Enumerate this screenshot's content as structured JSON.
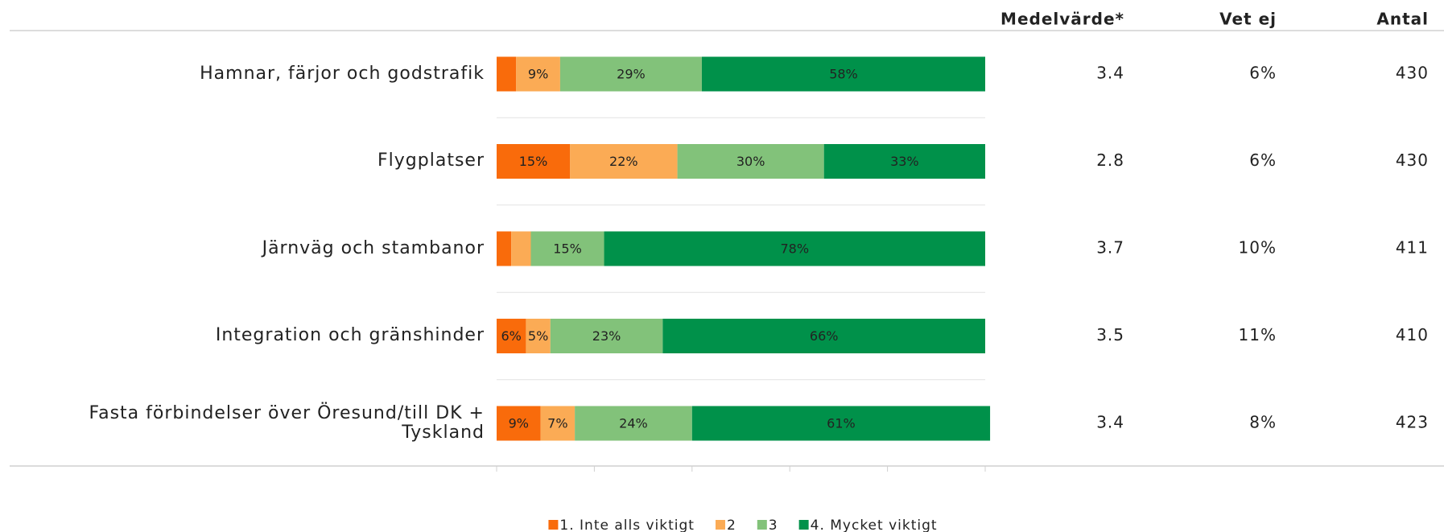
{
  "chart_data": {
    "type": "stacked_bar_horizontal",
    "categories": [
      "Hamnar, färjor och godstrafik",
      "Flygplatser",
      "Järnväg och stambanor",
      "Integration och gränshinder",
      "Fasta förbindelser över Öresund/till DK + Tyskland"
    ],
    "series": [
      {
        "name": "1. Inte alls viktigt",
        "color": "#f96b0b",
        "values": [
          4,
          15,
          3,
          6,
          9
        ],
        "value_labels": [
          null,
          "15%",
          null,
          "6%",
          "9%"
        ]
      },
      {
        "name": "2",
        "color": "#fbab55",
        "values": [
          9,
          22,
          4,
          5,
          7
        ],
        "value_labels": [
          "9%",
          "22%",
          null,
          "5%",
          "7%"
        ]
      },
      {
        "name": "3",
        "color": "#82c27a",
        "values": [
          29,
          30,
          15,
          23,
          24
        ],
        "value_labels": [
          "29%",
          "30%",
          "15%",
          "23%",
          "24%"
        ]
      },
      {
        "name": "4. Mycket viktigt",
        "color": "#00914a",
        "values": [
          58,
          33,
          78,
          66,
          61
        ],
        "value_labels": [
          "58%",
          "33%",
          "78%",
          "66%",
          "61%"
        ]
      }
    ],
    "xlim": [
      0,
      100
    ],
    "xticks": [
      0,
      20,
      40,
      60,
      80,
      100
    ],
    "table": {
      "columns": [
        "Medelvärde*",
        "Vet ej",
        "Antal"
      ],
      "rows": [
        [
          3.4,
          "6%",
          430
        ],
        [
          2.8,
          "6%",
          430
        ],
        [
          3.7,
          "10%",
          411
        ],
        [
          3.5,
          "11%",
          410
        ],
        [
          3.4,
          "8%",
          423
        ]
      ]
    }
  }
}
